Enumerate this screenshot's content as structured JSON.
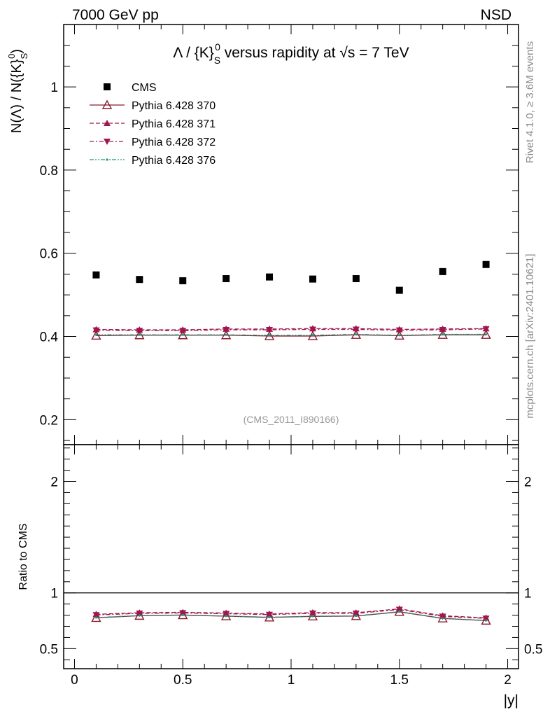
{
  "header": {
    "left": "7000 GeV pp",
    "right": "NSD"
  },
  "side": {
    "rivet": "Rivet 4.1.0, ≥ 3.6M events",
    "mcplots": "mcplots.cern.ch [arXiv:2401.10621]"
  },
  "chart_data": [
    {
      "type": "scatter",
      "title": "Λ / {K}S0 versus rapidity at √s = 7 TeV",
      "ylabel": "N(Λ) / N({K}S0)",
      "xlabel": "|y|",
      "xlim": [
        -0.05,
        2.05
      ],
      "ylim": [
        0.14,
        1.15
      ],
      "xticks": [
        0,
        0.5,
        1,
        1.5,
        2
      ],
      "xtick_labels": [
        "0",
        "0.5",
        "1",
        "1.5",
        "2"
      ],
      "yticks": [
        0.2,
        0.4,
        0.6,
        0.8,
        1.0
      ],
      "ytick_labels": [
        "0.2",
        "0.4",
        "0.6",
        "0.8",
        "1"
      ],
      "annotation": "(CMS_2011_I890166)",
      "x": [
        0.1,
        0.3,
        0.5,
        0.7,
        0.9,
        1.1,
        1.3,
        1.5,
        1.7,
        1.9
      ],
      "series": [
        {
          "name": "CMS",
          "color": "#000000",
          "marker": "square",
          "line": "none",
          "values": [
            0.548,
            0.537,
            0.534,
            0.539,
            0.543,
            0.538,
            0.539,
            0.511,
            0.556,
            0.573
          ]
        },
        {
          "name": "Pythia 6.428 370",
          "color": "#8b1a2e",
          "marker": "triangle-up-open",
          "line": "solid",
          "values": [
            0.402,
            0.403,
            0.403,
            0.403,
            0.401,
            0.401,
            0.404,
            0.402,
            0.404,
            0.404
          ]
        },
        {
          "name": "Pythia 6.428 371",
          "color": "#a0174f",
          "marker": "triangle-up",
          "line": "dashed",
          "values": [
            0.417,
            0.416,
            0.416,
            0.418,
            0.418,
            0.419,
            0.419,
            0.417,
            0.418,
            0.419
          ]
        },
        {
          "name": "Pythia 6.428 372",
          "color": "#a0174f",
          "marker": "triangle-down",
          "line": "dashdot",
          "values": [
            0.415,
            0.414,
            0.414,
            0.416,
            0.416,
            0.417,
            0.417,
            0.415,
            0.416,
            0.418
          ]
        },
        {
          "name": "Pythia 6.428 376",
          "color": "#1a9a7a",
          "marker": "dot",
          "line": "dashdotdot",
          "values": [
            0.404,
            0.404,
            0.404,
            0.404,
            0.403,
            0.403,
            0.405,
            0.403,
            0.405,
            0.405
          ]
        }
      ]
    },
    {
      "type": "line",
      "title": "",
      "ylabel": "Ratio to CMS",
      "xlabel": "|y|",
      "xlim": [
        -0.05,
        2.05
      ],
      "ylim": [
        0.32,
        2.33
      ],
      "yticks": [
        0.5,
        1,
        2
      ],
      "ytick_labels": [
        "0.5",
        "1",
        "2"
      ],
      "reference_line": 1,
      "x": [
        0.1,
        0.3,
        0.5,
        0.7,
        0.9,
        1.1,
        1.3,
        1.5,
        1.7,
        1.9
      ],
      "series": [
        {
          "name": "Pythia 6.428 370",
          "values": [
            0.776,
            0.795,
            0.8,
            0.791,
            0.78,
            0.789,
            0.792,
            0.83,
            0.771,
            0.751
          ]
        },
        {
          "name": "Pythia 6.428 371",
          "values": [
            0.808,
            0.822,
            0.826,
            0.819,
            0.811,
            0.823,
            0.822,
            0.857,
            0.795,
            0.776
          ]
        },
        {
          "name": "Pythia 6.428 372",
          "values": [
            0.802,
            0.816,
            0.82,
            0.813,
            0.805,
            0.817,
            0.816,
            0.851,
            0.789,
            0.771
          ]
        },
        {
          "name": "Pythia 6.428 376",
          "values": [
            0.779,
            0.797,
            0.802,
            0.793,
            0.782,
            0.791,
            0.794,
            0.832,
            0.772,
            0.753
          ]
        }
      ]
    }
  ]
}
